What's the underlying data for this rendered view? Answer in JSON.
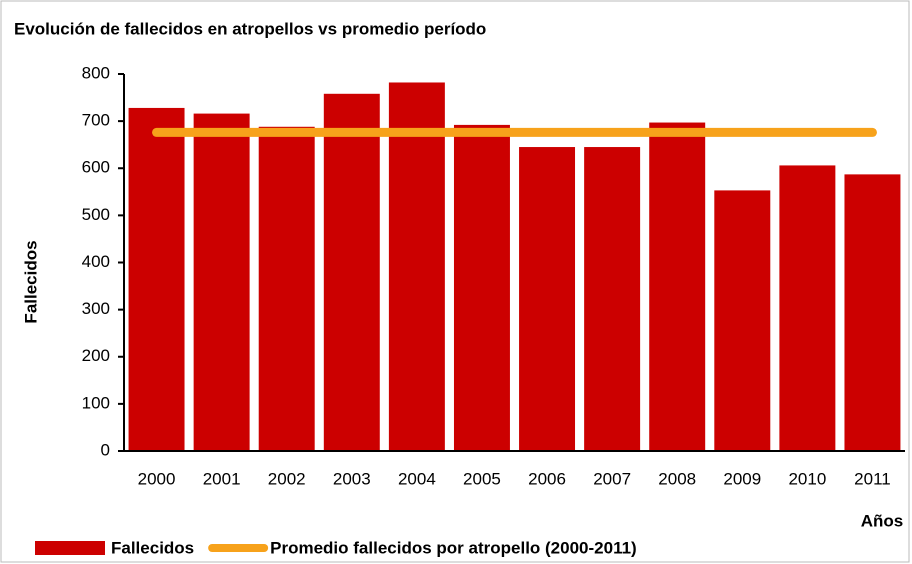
{
  "chart_data": {
    "type": "bar",
    "title": "Evolución de fallecidos en atropellos vs promedio período",
    "x_label": "Años",
    "y_label": "Fallecidos",
    "categories": [
      "2000",
      "2001",
      "2002",
      "2003",
      "2004",
      "2005",
      "2006",
      "2007",
      "2008",
      "2009",
      "2010",
      "2011"
    ],
    "series": [
      {
        "name": "Fallecidos",
        "color": "#cc0000",
        "values": [
          728,
          716,
          688,
          758,
          782,
          692,
          645,
          645,
          697,
          553,
          606,
          587
        ]
      },
      {
        "name": "Promedio fallecidos por atropello (2000-2011)",
        "color": "#f7a21b",
        "type": "line",
        "values": [
          676,
          676,
          676,
          676,
          676,
          676,
          676,
          676,
          676,
          676,
          676,
          676
        ]
      }
    ],
    "ylim": [
      0,
      800
    ],
    "yticks": [
      0,
      100,
      200,
      300,
      400,
      500,
      600,
      700,
      800
    ],
    "grid": false
  }
}
